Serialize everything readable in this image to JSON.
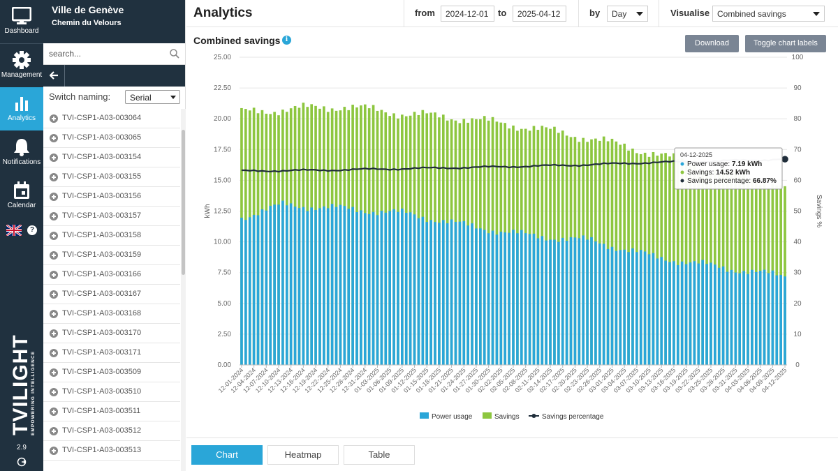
{
  "nav": {
    "items": [
      {
        "label": "Dashboard",
        "icon": "monitor-icon"
      },
      {
        "label": "Management",
        "icon": "gear-icon"
      },
      {
        "label": "Analytics",
        "icon": "bar-chart-icon"
      },
      {
        "label": "Notifications",
        "icon": "bell-icon"
      },
      {
        "label": "Calendar",
        "icon": "calendar-icon"
      }
    ],
    "help": "?",
    "brand": "TVILIGHT",
    "brand_tagline": "EMPOWERING INTELLIGENCE",
    "version": "2.9"
  },
  "site": {
    "city": "Ville de Genève",
    "street": "Chemin du Velours"
  },
  "search": {
    "placeholder": "search..."
  },
  "naming": {
    "label": "Switch naming:",
    "value": "Serial"
  },
  "devices": [
    "TVI-CSP1-A03-003064",
    "TVI-CSP1-A03-003065",
    "TVI-CSP1-A03-003154",
    "TVI-CSP1-A03-003155",
    "TVI-CSP1-A03-003156",
    "TVI-CSP1-A03-003157",
    "TVI-CSP1-A03-003158",
    "TVI-CSP1-A03-003159",
    "TVI-CSP1-A03-003166",
    "TVI-CSP1-A03-003167",
    "TVI-CSP1-A03-003168",
    "TVI-CSP1-A03-003170",
    "TVI-CSP1-A03-003171",
    "TVI-CSP1-A03-003509",
    "TVI-CSP1-A03-003510",
    "TVI-CSP1-A03-003511",
    "TVI-CSP1-A03-003512",
    "TVI-CSP1-A03-003513"
  ],
  "header": {
    "title": "Analytics",
    "from_label": "from",
    "from_value": "2024-12-01",
    "to_label": "to",
    "to_value": "2025-04-12",
    "by_label": "by",
    "by_value": "Day",
    "visualise_label": "Visualise",
    "visualise_value": "Combined savings"
  },
  "chart_header": {
    "title": "Combined savings",
    "download": "Download",
    "toggle_labels": "Toggle chart labels"
  },
  "tabs": [
    "Chart",
    "Heatmap",
    "Table"
  ],
  "colors": {
    "power": "#2aa6d8",
    "savings": "#8dc63f",
    "line": "#1f2d3a",
    "accent": "#2aa6d8"
  },
  "chart_data": {
    "type": "bar",
    "title": "Combined savings",
    "xlabel": "",
    "ylabel": "kWh",
    "y2label": "Savings %",
    "ylim": [
      0,
      25
    ],
    "y2lim": [
      0,
      100
    ],
    "yticks": [
      "0.00",
      "2.50",
      "5.00",
      "7.50",
      "10.00",
      "12.50",
      "15.00",
      "17.50",
      "20.00",
      "22.50",
      "25.00"
    ],
    "y2ticks": [
      "0",
      "10",
      "20",
      "30",
      "40",
      "50",
      "60",
      "70",
      "80",
      "90",
      "100"
    ],
    "start_date": "2024-12-01",
    "days": 133,
    "x_tick_labels": [
      "12-01-2024",
      "12-04-2024",
      "12-07-2024",
      "12-10-2024",
      "12-13-2024",
      "12-16-2024",
      "12-19-2024",
      "12-22-2024",
      "12-25-2024",
      "12-28-2024",
      "12-31-2024",
      "01-03-2025",
      "01-06-2025",
      "01-09-2025",
      "01-12-2025",
      "01-15-2025",
      "01-18-2025",
      "01-21-2025",
      "01-24-2025",
      "01-27-2025",
      "01-30-2025",
      "02-02-2025",
      "02-05-2025",
      "02-08-2025",
      "02-11-2025",
      "02-14-2025",
      "02-17-2025",
      "02-20-2025",
      "02-23-2025",
      "02-26-2025",
      "03-01-2025",
      "03-04-2025",
      "03-07-2025",
      "03-10-2025",
      "03-13-2025",
      "03-16-2025",
      "03-19-2025",
      "03-22-2025",
      "03-25-2025",
      "03-28-2025",
      "03-31-2025",
      "04-03-2025",
      "04-06-2025",
      "04-09-2025",
      "04-12-2025"
    ],
    "series": [
      {
        "name": "Power usage",
        "type": "bar",
        "axis": "left",
        "anchors": [
          [
            0,
            12.0
          ],
          [
            10,
            13.0
          ],
          [
            25,
            12.7
          ],
          [
            40,
            12.3
          ],
          [
            55,
            11.3
          ],
          [
            70,
            10.5
          ],
          [
            85,
            10.1
          ],
          [
            100,
            8.8
          ],
          [
            115,
            8.0
          ],
          [
            132,
            7.19
          ]
        ]
      },
      {
        "name": "Savings",
        "type": "bar",
        "axis": "left",
        "anchors": [
          [
            0,
            20.5
          ],
          [
            12,
            20.8
          ],
          [
            25,
            21.0
          ],
          [
            40,
            20.4
          ],
          [
            55,
            20.0
          ],
          [
            70,
            19.3
          ],
          [
            85,
            18.4
          ],
          [
            100,
            17.2
          ],
          [
            115,
            15.8
          ],
          [
            132,
            14.52
          ]
        ]
      },
      {
        "name": "Savings percentage",
        "type": "line",
        "axis": "right",
        "anchors": [
          [
            0,
            63.0
          ],
          [
            20,
            63.3
          ],
          [
            40,
            63.8
          ],
          [
            60,
            64.3
          ],
          [
            80,
            64.9
          ],
          [
            100,
            65.8
          ],
          [
            115,
            66.2
          ],
          [
            132,
            66.87
          ]
        ]
      }
    ],
    "legend": [
      "Power usage",
      "Savings",
      "Savings percentage"
    ],
    "legend_position": "bottom",
    "tooltip": {
      "date": "04-12-2025",
      "power_label": "Power usage: ",
      "power_value": "7.19 kWh",
      "savings_label": "Savings: ",
      "savings_value": "14.52 kWh",
      "pct_label": "Savings percentage: ",
      "pct_value": "66.87%"
    }
  }
}
